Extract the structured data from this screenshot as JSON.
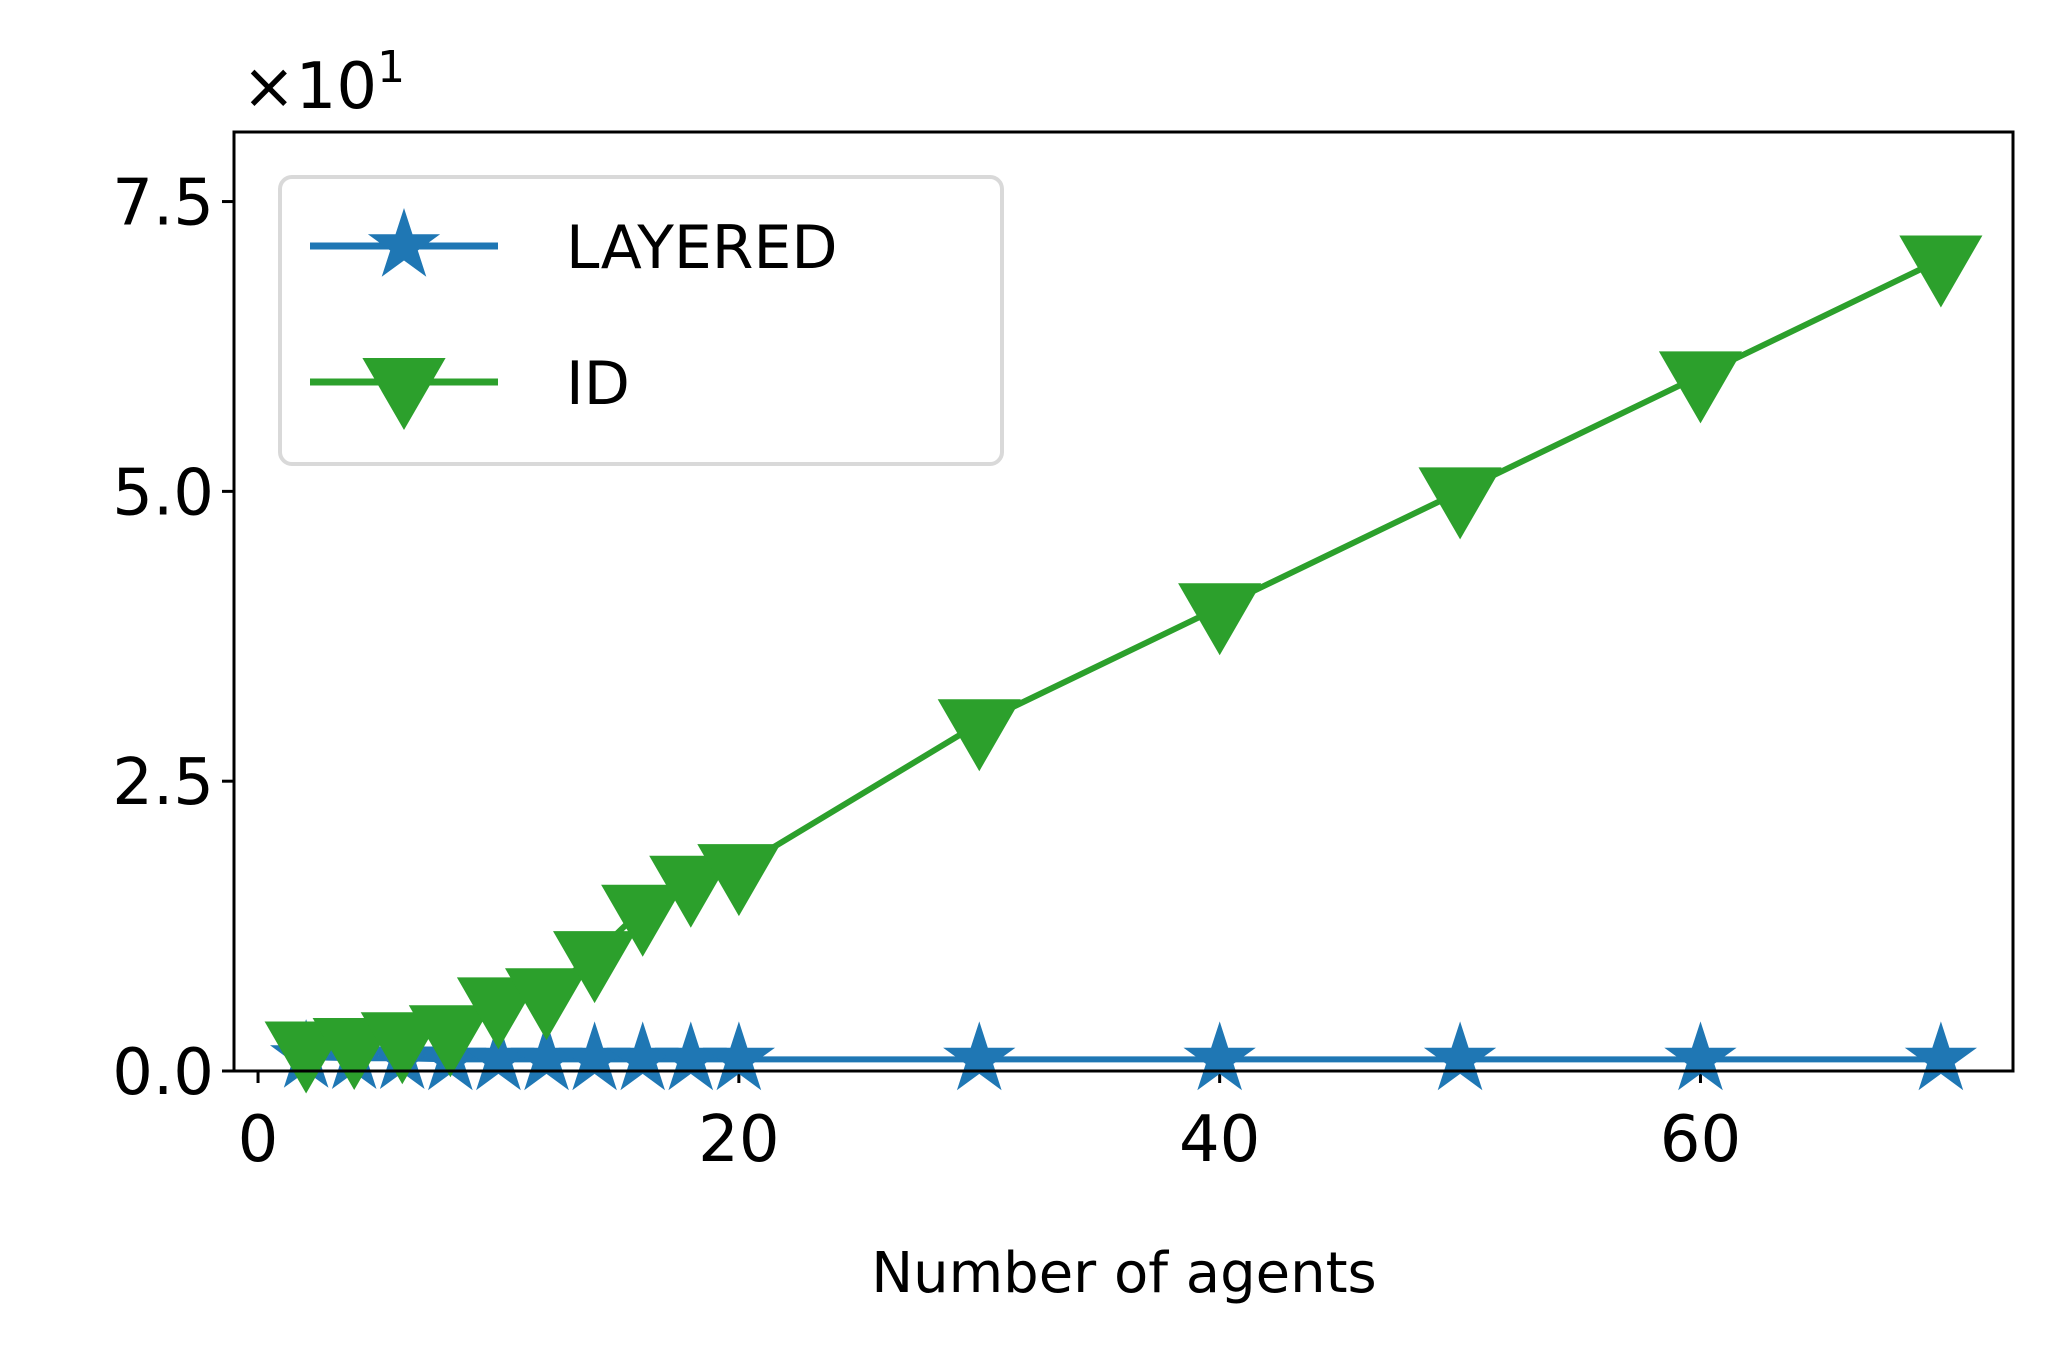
{
  "chart_data": {
    "type": "line",
    "xlabel": "Number of agents",
    "ylabel": "",
    "y_multiplier": {
      "base": "×10",
      "exponent": "1"
    },
    "xlim": [
      -1,
      73
    ],
    "ylim": [
      0,
      0.81
    ],
    "x_ticks": [
      0,
      20,
      40,
      60
    ],
    "x_tick_labels": [
      "0",
      "20",
      "40",
      "60"
    ],
    "y_ticks": [
      0,
      0.25,
      0.5,
      0.75
    ],
    "y_tick_labels": [
      "0.0",
      "2.5",
      "5.0",
      "7.5"
    ],
    "grid": false,
    "legend_position": "top-left",
    "series": [
      {
        "name": "LAYERED",
        "color": "#1f77b4",
        "marker": "star",
        "x": [
          2,
          4,
          6,
          8,
          10,
          12,
          14,
          16,
          18,
          20,
          30,
          40,
          50,
          60,
          70
        ],
        "y": [
          0.012,
          0.011,
          0.011,
          0.01,
          0.01,
          0.01,
          0.01,
          0.01,
          0.01,
          0.01,
          0.01,
          0.01,
          0.01,
          0.01,
          0.01
        ]
      },
      {
        "name": "ID",
        "color": "#2ca02c",
        "marker": "triangle-down",
        "x": [
          2,
          4,
          6,
          8,
          10,
          12,
          14,
          16,
          18,
          20,
          30,
          40,
          50,
          60,
          70
        ],
        "y": [
          0.022,
          0.025,
          0.03,
          0.036,
          0.06,
          0.068,
          0.1,
          0.14,
          0.165,
          0.175,
          0.3,
          0.4,
          0.5,
          0.6,
          0.7
        ]
      }
    ]
  }
}
